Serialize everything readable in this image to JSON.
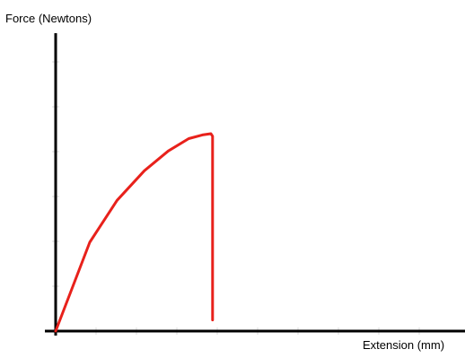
{
  "chart_data": {
    "type": "line",
    "title": "",
    "ylabel": "Force (Newtons)",
    "xlabel": "Extension (mm)",
    "xlim": [
      0,
      100
    ],
    "ylim": [
      0,
      100
    ],
    "grid": false,
    "series": [
      {
        "color": "#e8211b",
        "points": [
          [
            0,
            0
          ],
          [
            10,
            36
          ],
          [
            18,
            53
          ],
          [
            26,
            65
          ],
          [
            33,
            73
          ],
          [
            39,
            78
          ],
          [
            43,
            79.5
          ],
          [
            45.5,
            80
          ],
          [
            46,
            79
          ],
          [
            46,
            4.5
          ]
        ]
      }
    ],
    "colors": {
      "axis": "#000000",
      "line": "#e8211b"
    }
  }
}
